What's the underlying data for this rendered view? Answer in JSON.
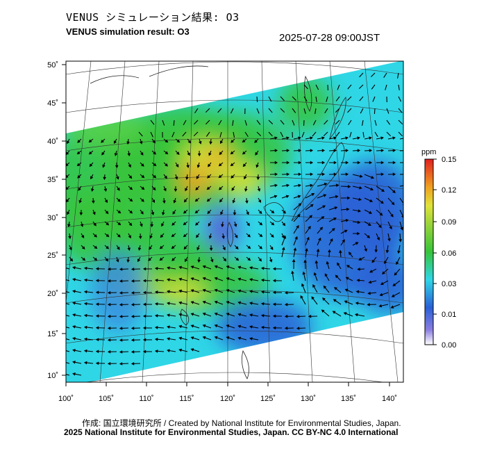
{
  "title_jp": "VENUS シミュレーション結果: O3",
  "title_en": "VENUS simulation result: O3",
  "timestamp": "2025-07-28 09:00JST",
  "map": {
    "lon_ticks": [
      "100˚",
      "105˚",
      "110˚",
      "115˚",
      "120˚",
      "125˚",
      "130˚",
      "135˚",
      "140˚"
    ],
    "lat_ticks": [
      "50˚",
      "45˚",
      "40˚",
      "35˚",
      "30˚",
      "25˚",
      "20˚",
      "15˚",
      "10˚"
    ],
    "colors": {
      "blue": "#2a5fd6",
      "cyan": "#2fd6e6",
      "green": "#37c43a",
      "yellow": "#e0e23a",
      "orange": "#f0a020",
      "red": "#e02020"
    }
  },
  "colorbar": {
    "unit": "ppm",
    "labels": [
      "0.15",
      "0.12",
      "0.09",
      "0.06",
      "0.03",
      "0.01",
      "0.00"
    ]
  },
  "credit_jp": "作成: 国立環境研究所 / Created by National Institute for Environmental Studies, Japan.",
  "credit_en": "2025 National Institute for Environmental Studies, Japan. CC BY-NC 4.0 International"
}
